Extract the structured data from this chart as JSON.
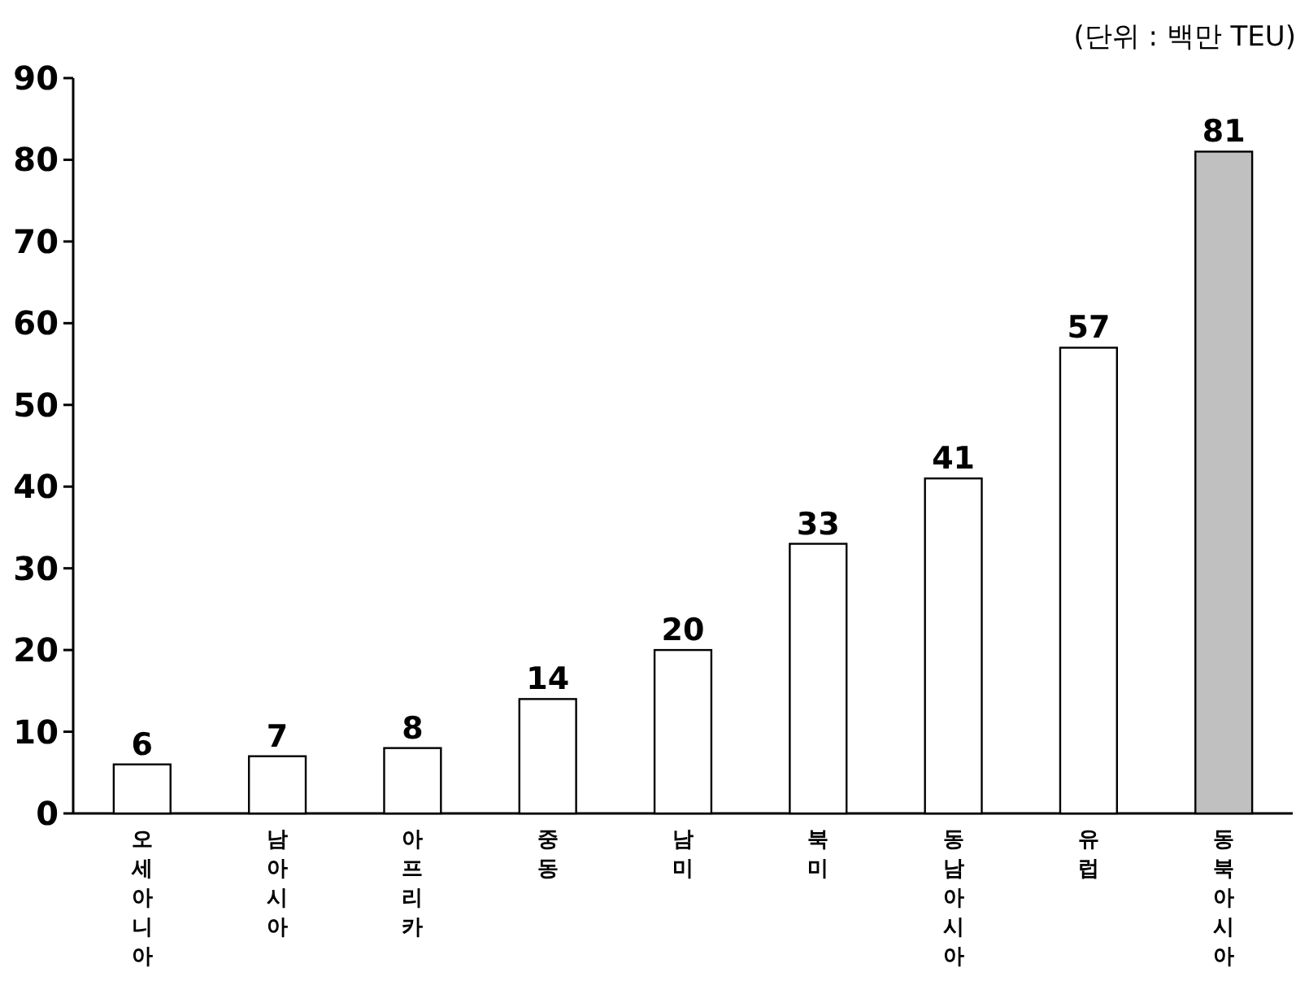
{
  "chart_data": {
    "type": "bar",
    "categories": [
      "오세아니아",
      "남아시아",
      "아프리카",
      "중동",
      "남미",
      "북미",
      "동남아시아",
      "유럽",
      "동북아시아"
    ],
    "values": [
      6,
      7,
      8,
      14,
      20,
      33,
      41,
      57,
      81
    ],
    "colors": [
      "#ffffff",
      "#ffffff",
      "#ffffff",
      "#ffffff",
      "#ffffff",
      "#ffffff",
      "#ffffff",
      "#ffffff",
      "#c0c0c0"
    ],
    "ylim": [
      0,
      90
    ],
    "yticks": [
      0,
      10,
      20,
      30,
      40,
      50,
      60,
      70,
      80,
      90
    ],
    "grid": false,
    "data_labels": true,
    "annotations": [
      "(단위 : 백만 TEU)"
    ]
  }
}
